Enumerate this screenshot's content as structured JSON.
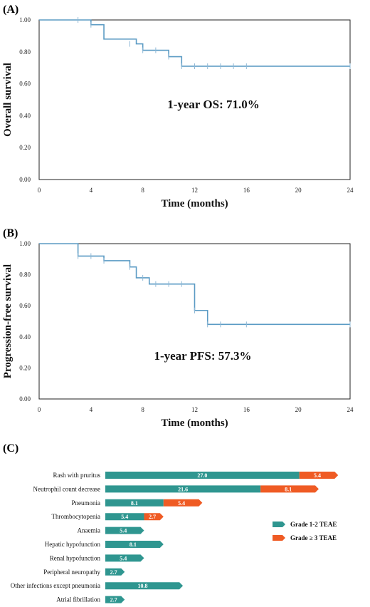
{
  "chart_data": [
    {
      "type": "line",
      "panel_label": "(A)",
      "xlabel": "Time (months)",
      "ylabel": "Overall survival",
      "xlim": [
        0,
        24
      ],
      "ylim": [
        0,
        1
      ],
      "xticks": [
        "0",
        "4",
        "8",
        "12",
        "16",
        "20",
        "24"
      ],
      "yticks": [
        "0.00",
        "0.20",
        "0.40",
        "0.60",
        "0.80",
        "1.00"
      ],
      "annotation": "1-year OS: 71.0%",
      "color": "#5b9bc4",
      "steps": [
        [
          0,
          1.0
        ],
        [
          4,
          0.97
        ],
        [
          5,
          0.88
        ],
        [
          7.5,
          0.85
        ],
        [
          8,
          0.81
        ],
        [
          10,
          0.77
        ],
        [
          11,
          0.71
        ],
        [
          24,
          0.71
        ]
      ],
      "censored": [
        [
          3,
          1.0
        ],
        [
          4,
          0.97
        ],
        [
          7,
          0.85
        ],
        [
          8,
          0.81
        ],
        [
          9,
          0.81
        ],
        [
          10,
          0.77
        ],
        [
          11,
          0.71
        ],
        [
          12,
          0.71
        ],
        [
          13,
          0.71
        ],
        [
          14,
          0.71
        ],
        [
          15,
          0.71
        ],
        [
          16,
          0.71
        ],
        [
          24,
          0.71
        ]
      ]
    },
    {
      "type": "line",
      "panel_label": "(B)",
      "xlabel": "Time (months)",
      "ylabel": "Progression-free survival",
      "xlim": [
        0,
        24
      ],
      "ylim": [
        0,
        1
      ],
      "xticks": [
        "0",
        "4",
        "8",
        "12",
        "16",
        "20",
        "24"
      ],
      "yticks": [
        "0.00",
        "0.20",
        "0.40",
        "0.60",
        "0.80",
        "1.00"
      ],
      "annotation": "1-year PFS: 57.3%",
      "color": "#5b9bc4",
      "steps": [
        [
          0,
          1.0
        ],
        [
          3,
          0.92
        ],
        [
          5,
          0.89
        ],
        [
          7,
          0.85
        ],
        [
          7.5,
          0.78
        ],
        [
          8.5,
          0.74
        ],
        [
          12,
          0.57
        ],
        [
          13,
          0.48
        ],
        [
          24,
          0.48
        ]
      ],
      "censored": [
        [
          3,
          0.92
        ],
        [
          4,
          0.92
        ],
        [
          5,
          0.89
        ],
        [
          7,
          0.85
        ],
        [
          8,
          0.78
        ],
        [
          9,
          0.74
        ],
        [
          10,
          0.74
        ],
        [
          11,
          0.74
        ],
        [
          12,
          0.57
        ],
        [
          13,
          0.48
        ],
        [
          14,
          0.48
        ],
        [
          16,
          0.48
        ],
        [
          24,
          0.48
        ]
      ]
    },
    {
      "type": "bar",
      "orientation": "horizontal",
      "stacked": true,
      "panel_label": "(C)",
      "categories": [
        "Rash with pruritus",
        "Neutrophil count decrease",
        "Pneumonia",
        "Thrombocytopenia",
        "Anaemia",
        "Hepatic hypofunction",
        "Renal hypofunction",
        "Peripheral neuropathy",
        "Other infections except pneumonia",
        "Atrial fibrillation"
      ],
      "series": [
        {
          "name": "Grade 1-2 TEAE",
          "color": "#2f9690",
          "values": [
            27.0,
            21.6,
            8.1,
            5.4,
            5.4,
            8.1,
            5.4,
            2.7,
            10.8,
            2.7
          ]
        },
        {
          "name": "Grade ≥ 3 TEAE",
          "color": "#ef5b24",
          "values": [
            5.4,
            8.1,
            5.4,
            2.7,
            0,
            0,
            0,
            0,
            0,
            0
          ]
        }
      ],
      "labels": [
        [
          "27.0",
          "21.6",
          "8.1",
          "5.4",
          "5.4",
          "8.1",
          "5.4",
          "2.7",
          "10.8",
          "2.7"
        ],
        [
          "5.4",
          "8.1",
          "5.4",
          "2.7",
          "",
          "",
          "",
          "",
          "",
          ""
        ]
      ],
      "legend_position": "right"
    }
  ]
}
